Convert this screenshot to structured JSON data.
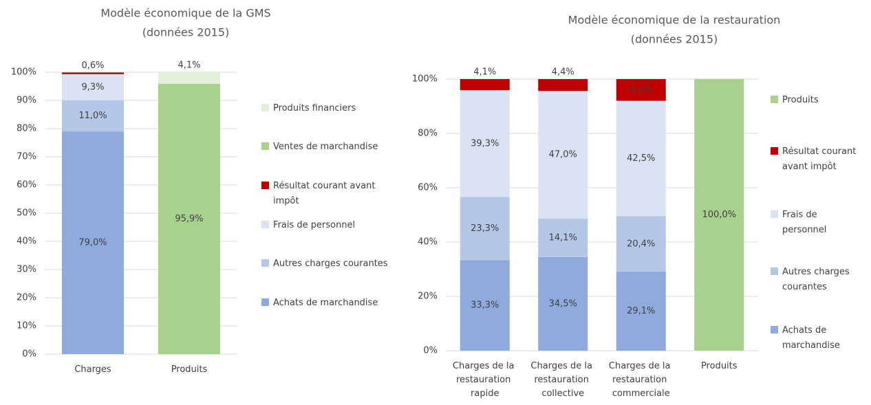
{
  "chart_data": [
    {
      "type": "stacked-bar",
      "title": "Modèle économique de la GMS",
      "subtitle": "(données 2015)",
      "categories": [
        "Charges",
        "Produits"
      ],
      "series": [
        {
          "name": "Achats de marchandise",
          "color": "#8faadc",
          "values": [
            79.0,
            null
          ],
          "value_labels": [
            "79,0%",
            null
          ]
        },
        {
          "name": "Autres charges courantes",
          "color": "#b4c7e7",
          "values": [
            11.0,
            null
          ],
          "value_labels": [
            "11,0%",
            null
          ]
        },
        {
          "name": "Frais de personnel",
          "color": "#dae3f3",
          "values": [
            9.3,
            null
          ],
          "value_labels": [
            "9,3%",
            null
          ]
        },
        {
          "name": "Résultat courant avant impôt",
          "color": "#c00000",
          "values": [
            0.6,
            null
          ],
          "value_labels": [
            "0,6%",
            null
          ]
        },
        {
          "name": "Ventes de marchandise",
          "color": "#a9d18e",
          "values": [
            null,
            95.9
          ],
          "value_labels": [
            null,
            "95,9%"
          ]
        },
        {
          "name": "Produits financiers",
          "color": "#e2f0d9",
          "values": [
            null,
            4.1
          ],
          "value_labels": [
            null,
            "4,1%"
          ]
        }
      ],
      "ylim": [
        0,
        100
      ],
      "yticks": [
        {
          "value": 0,
          "label": "0%"
        },
        {
          "value": 10,
          "label": "10%"
        },
        {
          "value": 20,
          "label": "20%"
        },
        {
          "value": 30,
          "label": "30%"
        },
        {
          "value": 40,
          "label": "40%"
        },
        {
          "value": 50,
          "label": "50%"
        },
        {
          "value": 60,
          "label": "60%"
        },
        {
          "value": 70,
          "label": "70%"
        },
        {
          "value": 80,
          "label": "80%"
        },
        {
          "value": 90,
          "label": "90%"
        },
        {
          "value": 100,
          "label": "100%"
        }
      ],
      "grid": true,
      "legend": "right"
    },
    {
      "type": "stacked-bar",
      "title": "Modèle économique de la restauration",
      "subtitle": "(données 2015)",
      "categories": [
        "Charges de la restauration rapide",
        "Charges de la restauration collective",
        "Charges de la restauration commerciale",
        "Produits"
      ],
      "series": [
        {
          "name": "Achats de marchandise",
          "color": "#8faadc",
          "values": [
            33.3,
            34.5,
            29.1,
            null
          ],
          "value_labels": [
            "33,3%",
            "34,5%",
            "29,1%",
            null
          ]
        },
        {
          "name": "Autres charges courantes",
          "color": "#b4c7e7",
          "values": [
            23.3,
            14.1,
            20.4,
            null
          ],
          "value_labels": [
            "23,3%",
            "14,1%",
            "20,4%",
            null
          ]
        },
        {
          "name": "Frais de personnel",
          "color": "#dae3f3",
          "values": [
            39.3,
            47.0,
            42.5,
            null
          ],
          "value_labels": [
            "39,3%",
            "47,0%",
            "42,5%",
            null
          ]
        },
        {
          "name": "Résultat courant avant impôt",
          "color": "#c00000",
          "values": [
            4.1,
            4.4,
            8.0,
            null
          ],
          "value_labels": [
            "4,1%",
            "4,4%",
            "8,0%",
            null
          ]
        },
        {
          "name": "Produits",
          "color": "#a9d18e",
          "values": [
            null,
            null,
            null,
            100.0
          ],
          "value_labels": [
            null,
            null,
            null,
            "100,0%"
          ]
        }
      ],
      "ylim": [
        0,
        100
      ],
      "yticks": [
        {
          "value": 0,
          "label": "0%"
        },
        {
          "value": 20,
          "label": "20%"
        },
        {
          "value": 40,
          "label": "40%"
        },
        {
          "value": 60,
          "label": "60%"
        },
        {
          "value": 80,
          "label": "80%"
        },
        {
          "value": 100,
          "label": "100%"
        }
      ],
      "grid": true,
      "legend": "right"
    }
  ]
}
